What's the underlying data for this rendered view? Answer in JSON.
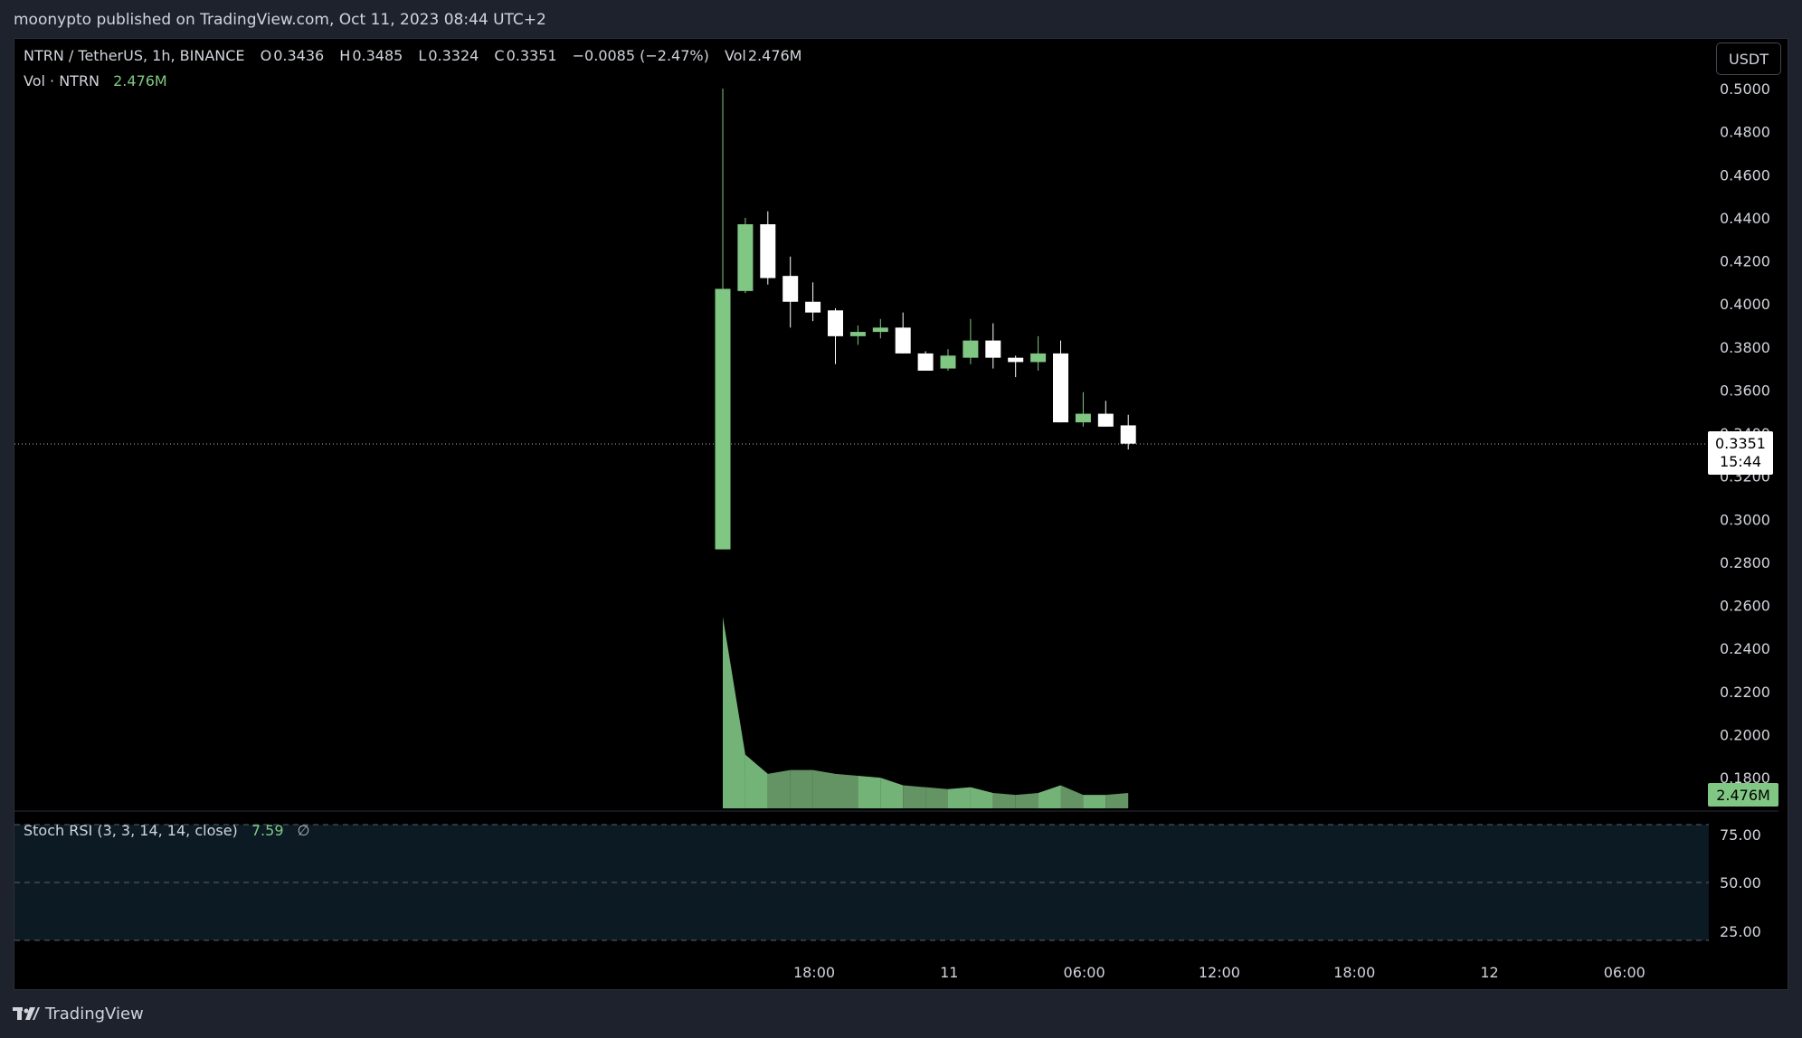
{
  "publish_line": "moonypto published on TradingView.com, Oct 11, 2023 08:44 UTC+2",
  "legend": {
    "symbol": "NTRN / TetherUS, 1h, BINANCE",
    "o_label": "O",
    "o_value": "0.3436",
    "h_label": "H",
    "h_value": "0.3485",
    "l_label": "L",
    "l_value": "0.3324",
    "c_label": "C",
    "c_value": "0.3351",
    "change": "−0.0085 (−2.47%)",
    "vol_label": "Vol",
    "vol_value": "2.476M"
  },
  "volume_legend": {
    "label": "Vol · NTRN",
    "value": "2.476M"
  },
  "rsi_legend": {
    "label": "Stoch RSI (3, 3, 14, 14, close)",
    "value": "7.59",
    "extra": "∅"
  },
  "currency_button": "USDT",
  "last_price": {
    "price": "0.3351",
    "countdown": "15:44"
  },
  "volume_badge": "2.476M",
  "footer": {
    "brand": "TradingView"
  },
  "colors": {
    "up": "#81c784",
    "down": "#ffffff",
    "background": "#000000",
    "rsi_band": "#0c1a24"
  },
  "price_axis": {
    "ticks": [
      "0.5000",
      "0.4800",
      "0.4600",
      "0.4400",
      "0.4200",
      "0.4000",
      "0.3800",
      "0.3600",
      "0.3400",
      "0.3200",
      "0.3000",
      "0.2800",
      "0.2600",
      "0.2400",
      "0.2200",
      "0.2000",
      "0.1800"
    ]
  },
  "rsi_axis": {
    "ticks": [
      "75.00",
      "50.00",
      "25.00"
    ]
  },
  "time_axis": {
    "ticks": [
      "18:00",
      "11",
      "06:00",
      "12:00",
      "18:00",
      "12",
      "06:00"
    ]
  },
  "chart_data": {
    "type": "candlestick",
    "price_range": [
      0.18,
      0.5
    ],
    "candles": [
      {
        "o": 0.286,
        "h": 0.5,
        "l": 0.286,
        "c": 0.407
      },
      {
        "o": 0.406,
        "h": 0.44,
        "l": 0.405,
        "c": 0.437
      },
      {
        "o": 0.437,
        "h": 0.443,
        "l": 0.409,
        "c": 0.412
      },
      {
        "o": 0.413,
        "h": 0.422,
        "l": 0.389,
        "c": 0.401
      },
      {
        "o": 0.401,
        "h": 0.41,
        "l": 0.392,
        "c": 0.396
      },
      {
        "o": 0.397,
        "h": 0.398,
        "l": 0.372,
        "c": 0.385
      },
      {
        "o": 0.385,
        "h": 0.39,
        "l": 0.381,
        "c": 0.387
      },
      {
        "o": 0.387,
        "h": 0.393,
        "l": 0.384,
        "c": 0.389
      },
      {
        "o": 0.389,
        "h": 0.396,
        "l": 0.377,
        "c": 0.377
      },
      {
        "o": 0.377,
        "h": 0.378,
        "l": 0.369,
        "c": 0.369
      },
      {
        "o": 0.37,
        "h": 0.379,
        "l": 0.369,
        "c": 0.376
      },
      {
        "o": 0.375,
        "h": 0.393,
        "l": 0.372,
        "c": 0.383
      },
      {
        "o": 0.383,
        "h": 0.391,
        "l": 0.37,
        "c": 0.375
      },
      {
        "o": 0.375,
        "h": 0.376,
        "l": 0.366,
        "c": 0.373
      },
      {
        "o": 0.373,
        "h": 0.385,
        "l": 0.369,
        "c": 0.377
      },
      {
        "o": 0.377,
        "h": 0.383,
        "l": 0.345,
        "c": 0.345
      },
      {
        "o": 0.345,
        "h": 0.359,
        "l": 0.343,
        "c": 0.349
      },
      {
        "o": 0.349,
        "h": 0.355,
        "l": 0.343,
        "c": 0.343
      },
      {
        "o": 0.3436,
        "h": 0.3485,
        "l": 0.3324,
        "c": 0.3351
      }
    ],
    "volume": [
      100,
      28,
      18,
      20,
      20,
      18,
      17,
      16,
      12,
      11,
      10,
      11,
      8,
      7,
      8,
      12,
      7,
      7,
      8
    ],
    "volume_units": "relative"
  }
}
